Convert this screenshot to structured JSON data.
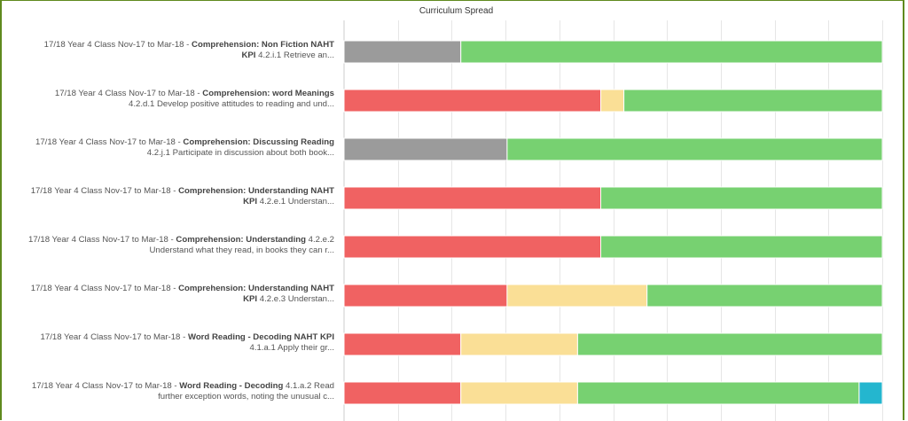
{
  "chart_data": {
    "type": "bar",
    "orientation": "horizontal",
    "stacked": true,
    "title": "Curriculum Spread",
    "xlabel": "",
    "ylabel": "",
    "xlim": [
      0,
      100
    ],
    "grid": true,
    "legend": "none",
    "categories": [
      {
        "prefix": "17/18 Year 4 Class Nov-17 to Mar-18 - ",
        "strand": "Comprehension: Non Fiction NAHT KPI",
        "detail": " 4.2.i.1 Retrieve an..."
      },
      {
        "prefix": "17/18 Year 4 Class Nov-17 to Mar-18 - ",
        "strand": "Comprehension: word Meanings",
        "detail": " 4.2.d.1 Develop positive attitudes to reading and und..."
      },
      {
        "prefix": "17/18 Year 4 Class Nov-17 to Mar-18 - ",
        "strand": "Comprehension: Discussing Reading",
        "detail": " 4.2.j.1 Participate in discussion about both book..."
      },
      {
        "prefix": "17/18 Year 4 Class Nov-17 to Mar-18 - ",
        "strand": "Comprehension: Understanding NAHT KPI",
        "detail": " 4.2.e.1 Understan..."
      },
      {
        "prefix": "17/18 Year 4 Class Nov-17 to Mar-18 - ",
        "strand": "Comprehension: Understanding",
        "detail": " 4.2.e.2 Understand what they read, in books they can r..."
      },
      {
        "prefix": "17/18 Year 4 Class Nov-17 to Mar-18 - ",
        "strand": "Comprehension: Understanding NAHT KPI",
        "detail": " 4.2.e.3 Understan..."
      },
      {
        "prefix": "17/18 Year 4 Class Nov-17 to Mar-18 - ",
        "strand": "Word Reading - Decoding NAHT KPI",
        "detail": " 4.1.a.1 Apply their gr..."
      },
      {
        "prefix": "17/18 Year 4 Class Nov-17 to Mar-18 - ",
        "strand": "Word Reading - Decoding",
        "detail": " 4.1.a.2 Read further exception words, noting the unusual c..."
      }
    ],
    "series": [
      {
        "color": "#9b9b9b",
        "values": [
          21.7,
          0,
          30.3,
          0,
          0,
          0,
          0,
          0
        ]
      },
      {
        "color": "#f06262",
        "values": [
          0,
          47.7,
          0,
          47.7,
          47.7,
          30.3,
          21.7,
          21.7
        ]
      },
      {
        "color": "#fadf96",
        "values": [
          0,
          4.3,
          0,
          0,
          0,
          26.0,
          21.7,
          21.7
        ]
      },
      {
        "color": "#77d171",
        "values": [
          78.3,
          48.0,
          69.7,
          52.3,
          52.3,
          43.7,
          56.6,
          52.3
        ]
      },
      {
        "color": "#24b6cf",
        "values": [
          0,
          0,
          0,
          0,
          0,
          0,
          0,
          4.3
        ]
      }
    ]
  }
}
